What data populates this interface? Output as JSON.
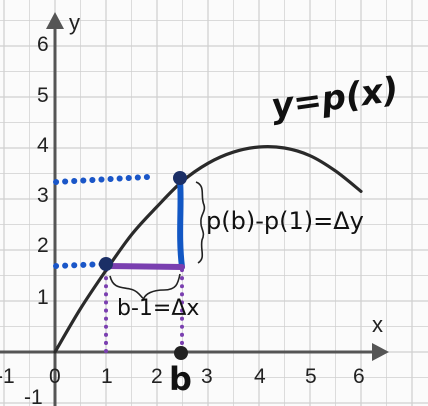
{
  "diagram": {
    "x_axis_label": "x",
    "y_axis_label": "y",
    "x_tick_labels": [
      "-1",
      "0",
      "1",
      "2",
      "3",
      "4",
      "5",
      "6"
    ],
    "y_tick_labels": [
      "-1",
      "1",
      "2",
      "3",
      "4",
      "5",
      "6"
    ],
    "function_label": "y=p(x)",
    "delta_y_label": "p(b)-p(1)=Δy",
    "delta_x_label": "b-1=Δx",
    "b_marker_label": "b",
    "curve_points": [
      [
        0,
        0
      ],
      [
        0.5,
        0.85
      ],
      [
        1,
        1.6
      ],
      [
        1.5,
        2.3
      ],
      [
        2,
        2.85
      ],
      [
        2.5,
        3.35
      ],
      [
        3,
        3.7
      ],
      [
        3.5,
        3.92
      ],
      [
        4,
        4.02
      ],
      [
        4.5,
        4.0
      ],
      [
        5,
        3.85
      ],
      [
        5.5,
        3.55
      ],
      [
        6,
        3.15
      ]
    ],
    "point_1": {
      "x": 1,
      "y": 1.6
    },
    "point_b": {
      "x": 2.5,
      "y": 3.35
    },
    "colors": {
      "grid": "#cfcfcf",
      "axis": "#555555",
      "curve": "#2a2a2a",
      "dotted_blue": "#1a56c8",
      "rise": "#1257c4",
      "run": "#7a3fb0",
      "dotted_purple": "#7a3fb0"
    }
  }
}
